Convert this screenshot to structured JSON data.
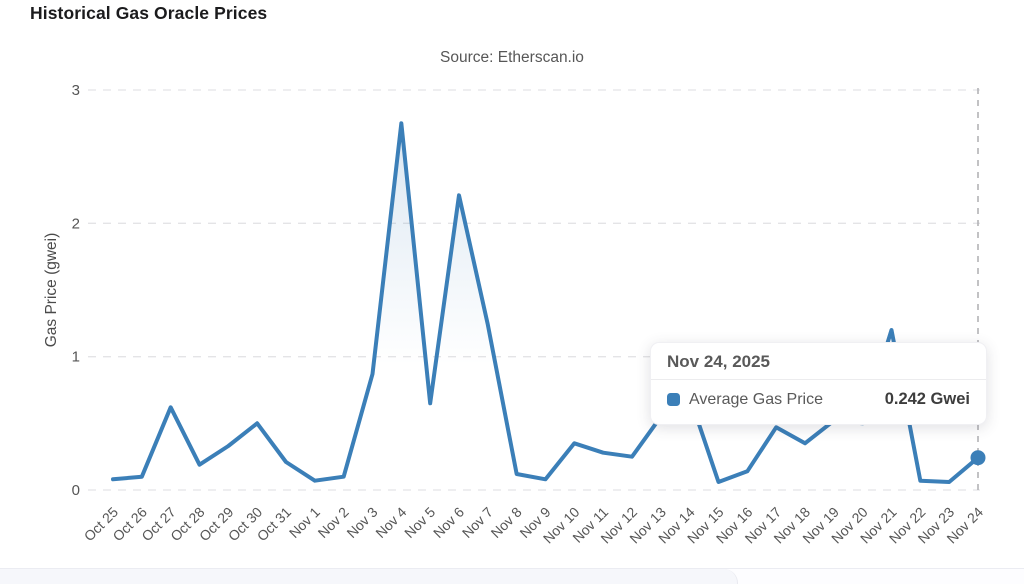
{
  "header": {
    "title": "Historical Gas Oracle Prices",
    "subtitle": "Source: Etherscan.io"
  },
  "tooltip": {
    "date": "Nov 24, 2025",
    "series_label": "Average Gas Price",
    "value": "0.242 Gwei"
  },
  "colors": {
    "line": "#3b7fb8",
    "marker": "#3b7fb8",
    "grid": "#e4e4e6",
    "crosshair": "#b3b3b6",
    "area_top": "rgba(70,130,185,0.22)",
    "area_bottom": "rgba(70,130,185,0)"
  },
  "chart_data": {
    "type": "line",
    "title": "Historical Gas Oracle Prices",
    "subtitle": "Source: Etherscan.io",
    "xlabel": "",
    "ylabel": "Gas Price (gwei)",
    "ylim": [
      0,
      3
    ],
    "yticks": [
      0,
      1,
      2,
      3
    ],
    "grid": "horizontal dashed",
    "legend_position": "none (series shown in tooltip)",
    "categories": [
      "Oct 25",
      "Oct 26",
      "Oct 27",
      "Oct 28",
      "Oct 29",
      "Oct 30",
      "Oct 31",
      "Nov 1",
      "Nov 2",
      "Nov 3",
      "Nov 4",
      "Nov 5",
      "Nov 6",
      "Nov 7",
      "Nov 8",
      "Nov 9",
      "Nov 10",
      "Nov 11",
      "Nov 12",
      "Nov 13",
      "Nov 14",
      "Nov 15",
      "Nov 16",
      "Nov 17",
      "Nov 18",
      "Nov 19",
      "Nov 20",
      "Nov 21",
      "Nov 22",
      "Nov 23",
      "Nov 24"
    ],
    "series": [
      {
        "name": "Average Gas Price",
        "unit": "Gwei",
        "color": "#3b7fb8",
        "values": [
          0.08,
          0.1,
          0.62,
          0.19,
          0.33,
          0.5,
          0.21,
          0.07,
          0.1,
          0.87,
          2.75,
          0.65,
          2.21,
          1.24,
          0.12,
          0.08,
          0.35,
          0.28,
          0.25,
          0.55,
          0.7,
          0.06,
          0.14,
          0.47,
          0.35,
          0.52,
          0.5,
          1.2,
          0.07,
          0.06,
          0.242
        ]
      }
    ],
    "highlighted_point": {
      "category": "Nov 24",
      "date": "Nov 24, 2025",
      "value": 0.242,
      "unit": "Gwei"
    }
  }
}
